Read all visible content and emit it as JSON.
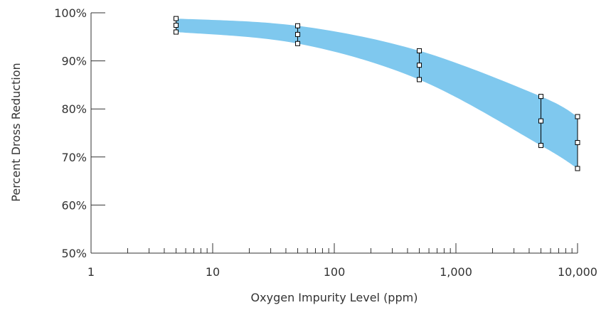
{
  "chart_data": {
    "type": "area",
    "title": "",
    "xlabel": "Oxygen Impurity Level (ppm)",
    "ylabel": "Percent Dross Reduction",
    "x_scale": "log",
    "xlim": [
      1,
      10000
    ],
    "ylim": [
      50,
      100
    ],
    "x_ticks": [
      1,
      10,
      100,
      1000,
      10000
    ],
    "x_tick_labels": [
      "1",
      "10",
      "100",
      "1,000",
      "10,000"
    ],
    "y_ticks": [
      50,
      60,
      70,
      80,
      90,
      100
    ],
    "y_tick_labels": [
      "50%",
      "60%",
      "70%",
      "80%",
      "90%",
      "100%"
    ],
    "band_color": "#7fc8ee",
    "x": [
      5,
      50,
      500,
      5000,
      10000
    ],
    "series": [
      {
        "values": [
          98.8,
          97.3,
          92.1,
          82.6,
          78.4
        ]
      },
      {
        "values": [
          97.4,
          95.5,
          89.1,
          77.5,
          73.0
        ]
      },
      {
        "values": [
          96.0,
          93.6,
          86.1,
          72.4,
          67.6
        ]
      }
    ],
    "grid": false,
    "legend": "none"
  }
}
